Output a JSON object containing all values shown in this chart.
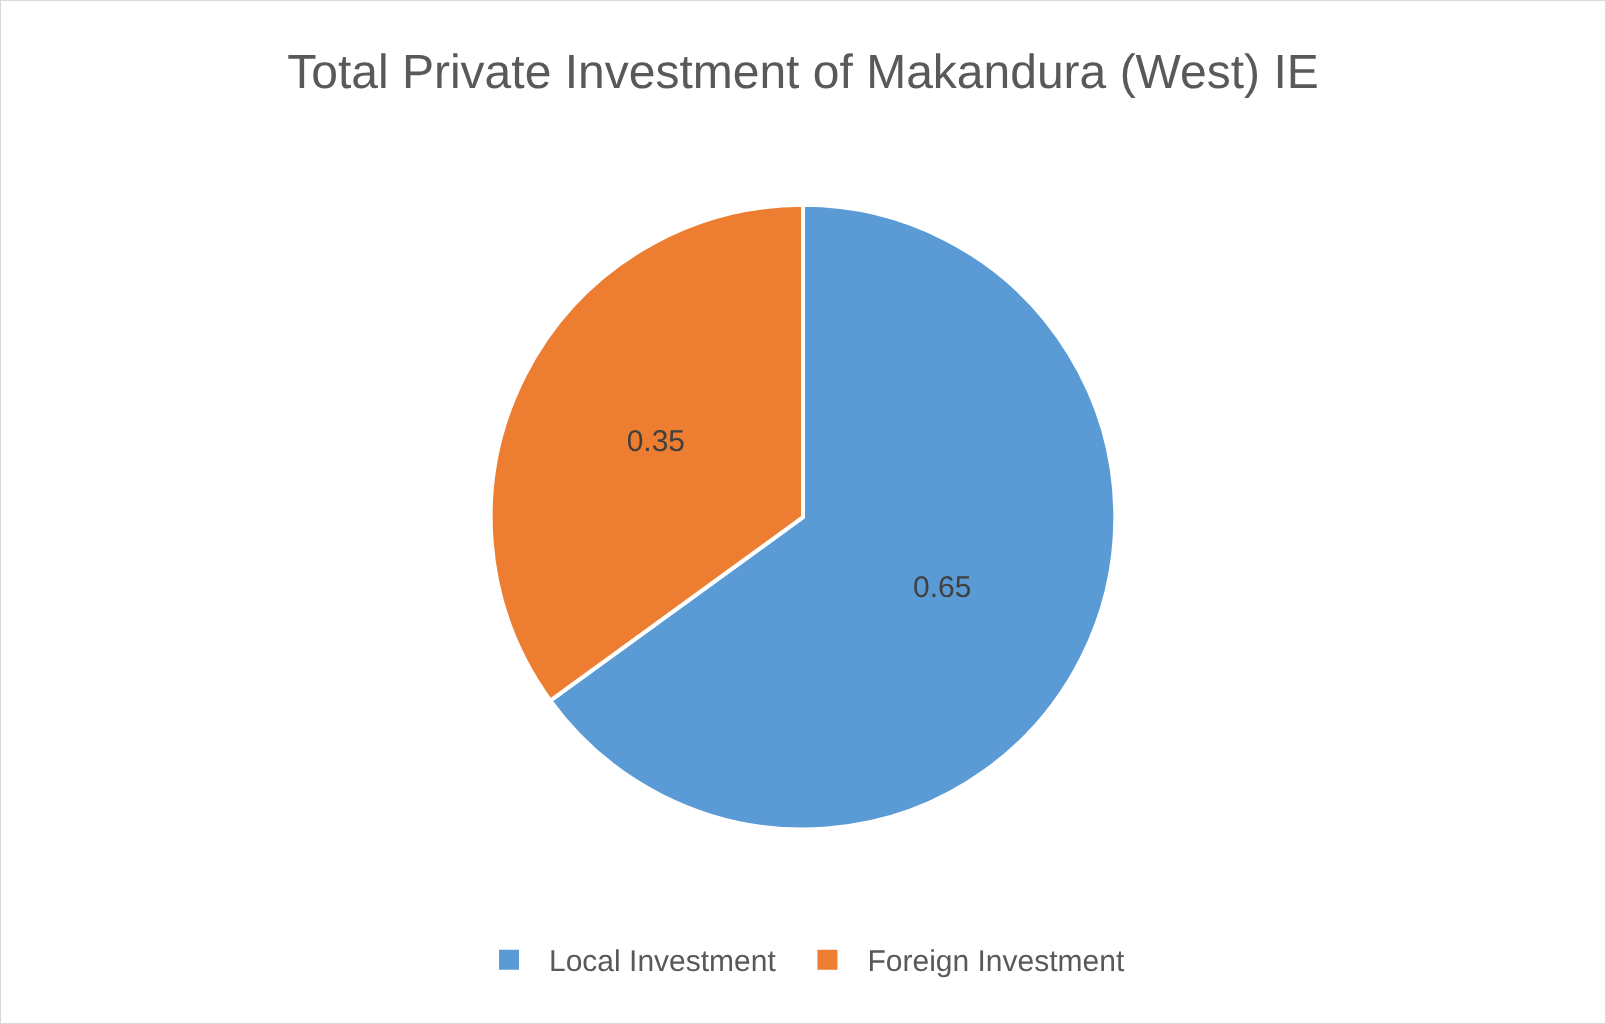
{
  "chart_data": {
    "type": "pie",
    "title": "Total Private Investment of Makandura (West) IE",
    "categories": [
      "Local Investment",
      "Foreign Investment"
    ],
    "values": [
      0.65,
      0.35
    ],
    "colors": [
      "#5b9bd5",
      "#ed7d31"
    ],
    "data_labels": true,
    "legend": "bottom"
  }
}
